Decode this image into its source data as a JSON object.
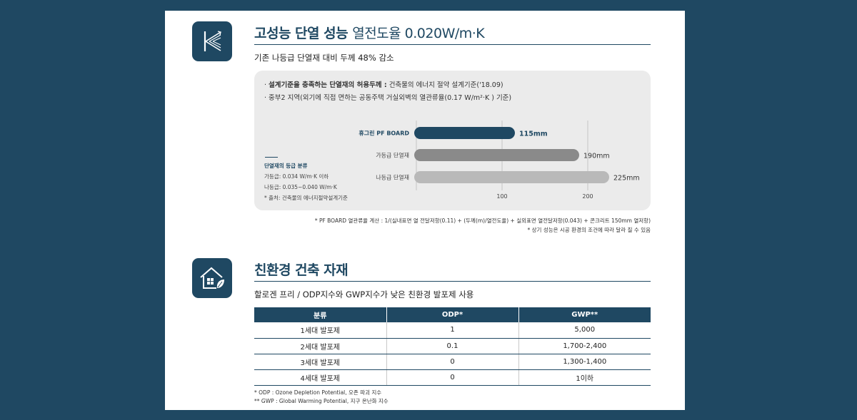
{
  "section1": {
    "title_bold": "고성능 단열 성능",
    "title_thin": "열전도율 0.020W/m·K",
    "subtitle": "기존 나등급 단열재 대비 두께 48% 감소",
    "bullets": [
      {
        "bold": "설계기준을 충족하는 단열재의 허용두께 :",
        "text": "건축물의 에너지 절약 설계기준('18.09)"
      },
      {
        "bold": "",
        "text": "중부2 지역(외기에 직접 면하는 공동주택 거실외벽의 열관류율(0.17 W/m²·K ) 기준)"
      }
    ],
    "legend": {
      "title": "단열재의 등급 분류",
      "lines": [
        "가등급: 0.034 W/m·K 이하",
        "나등급: 0.035~0.040 W/m·K",
        "* 출처: 건축물의 에너지절약설계기준"
      ]
    },
    "notes": [
      "* PF BOARD 열관류율 계산 : 1/(실내표면 열 전달저항(0.11) + (두께(m)/열전도율) + 실외표면 열전달저항(0.043) + 콘크리트 150mm 열저항)",
      "* 상기 성능은 시공 환경의 조건에 따라 달라 질 수 있음"
    ]
  },
  "chart_data": {
    "type": "bar",
    "orientation": "horizontal",
    "categories": [
      "휴그린 PF BOARD",
      "가등급 단열재",
      "나등급 단열재"
    ],
    "values": [
      115,
      190,
      225
    ],
    "value_labels": [
      "115mm",
      "190mm",
      "225mm"
    ],
    "unit": "mm",
    "xticks": [
      100,
      200
    ],
    "xlim": [
      0,
      230
    ],
    "colors": [
      "#1f4862",
      "#8a8a8a",
      "#b9b9b9"
    ],
    "grid": true
  },
  "section2": {
    "title": "친환경 건축 자재",
    "subtitle": "할로겐 프리 / ODP지수와 GWP지수가 낮은 친환경 발포제 사용",
    "table": {
      "headers": [
        "분류",
        "ODP*",
        "GWP**"
      ],
      "rows": [
        [
          "1세대 발포제",
          "1",
          "5,000"
        ],
        [
          "2세대 발포제",
          "0.1",
          "1,700-2,400"
        ],
        [
          "3세대 발포제",
          "0",
          "1,300-1,400"
        ],
        [
          "4세대 발포제",
          "0",
          "1이하"
        ]
      ]
    },
    "footnotes": [
      "* ODP : Ozone Depletion Potential, 오존 파괴 지수",
      "** GWP : Global Warming Potential, 지구 온난화 지수"
    ]
  },
  "icons": {
    "section1": "k-value-icon",
    "section2": "eco-house-icon"
  },
  "colors": {
    "navy": "#1f4862",
    "background": "#1f4862",
    "panel": "#ebebeb"
  }
}
